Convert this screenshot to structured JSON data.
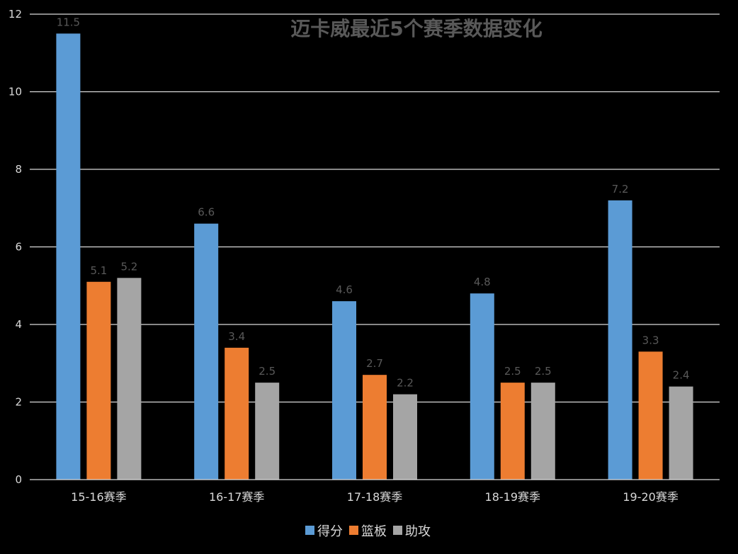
{
  "chart_data": {
    "type": "bar",
    "title": "迈卡威最近5个赛季数据变化",
    "categories": [
      "15-16赛季",
      "16-17赛季",
      "17-18赛季",
      "18-19赛季",
      "19-20赛季"
    ],
    "series": [
      {
        "name": "得分",
        "color": "#5b9bd5",
        "values": [
          11.5,
          6.6,
          4.6,
          4.8,
          7.2
        ]
      },
      {
        "name": "篮板",
        "color": "#ed7d31",
        "values": [
          5.1,
          3.4,
          2.7,
          2.5,
          3.3
        ]
      },
      {
        "name": "助攻",
        "color": "#a5a5a5",
        "values": [
          5.2,
          2.5,
          2.2,
          2.5,
          2.4
        ]
      }
    ],
    "ylim": [
      0,
      12
    ],
    "yticks": [
      0,
      2,
      4,
      6,
      8,
      10,
      12
    ],
    "grid": true,
    "legend_position": "bottom",
    "data_labels": true
  }
}
